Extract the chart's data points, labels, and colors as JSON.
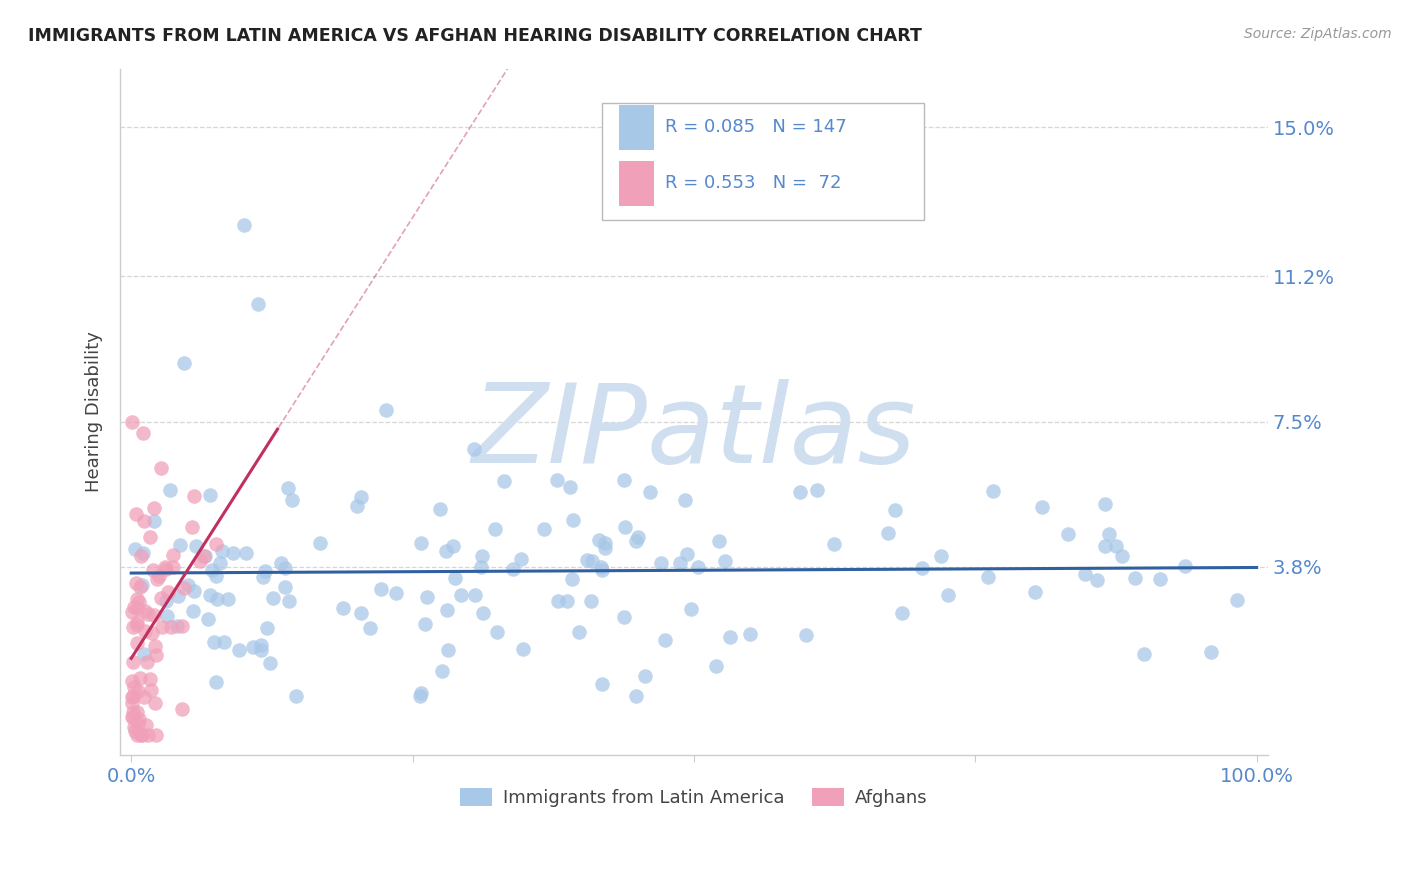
{
  "title": "IMMIGRANTS FROM LATIN AMERICA VS AFGHAN HEARING DISABILITY CORRELATION CHART",
  "source": "Source: ZipAtlas.com",
  "ylabel": "Hearing Disability",
  "xlim": [
    -0.01,
    1.01
  ],
  "ylim": [
    -0.01,
    0.165
  ],
  "yticks": [
    0.038,
    0.075,
    0.112,
    0.15
  ],
  "ytick_labels": [
    "3.8%",
    "7.5%",
    "11.2%",
    "15.0%"
  ],
  "series1_label": "Immigrants from Latin America",
  "series2_label": "Afghans",
  "series1_color": "#a8c8e8",
  "series2_color": "#f0a0b8",
  "series1_line_color": "#3060a0",
  "series2_line_color": "#c03060",
  "series1_R": 0.085,
  "series1_N": 147,
  "series2_R": 0.553,
  "series2_N": 72,
  "title_color": "#222222",
  "axis_color": "#5588cc",
  "watermark": "ZIPatlas",
  "watermark_color": "#d0dff0",
  "background_color": "#ffffff",
  "grid_color": "#cccccc",
  "spine_color": "#cccccc"
}
